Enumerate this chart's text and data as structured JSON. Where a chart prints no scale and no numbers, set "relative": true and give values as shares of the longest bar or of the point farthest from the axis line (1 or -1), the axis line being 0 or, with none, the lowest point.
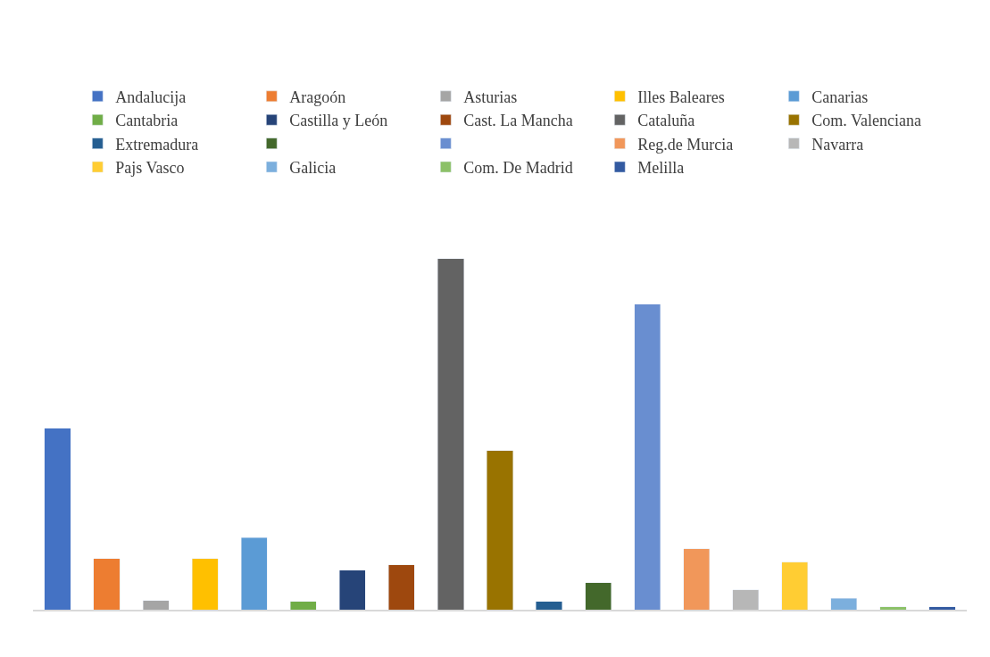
{
  "chart_data": {
    "type": "bar",
    "relative": true,
    "categories": [
      null,
      null,
      null,
      null,
      null,
      null,
      null,
      null,
      null,
      null,
      null,
      null,
      null,
      null,
      null,
      null,
      null,
      null,
      null
    ],
    "legend": "top",
    "stacked": true,
    "series": [
      {
        "name": "Andalucija",
        "color": "#4472c4",
        "values": [
          0.517,
          null,
          null,
          null,
          null,
          null,
          null,
          null,
          null,
          null,
          null,
          null,
          null,
          null,
          null,
          null,
          null,
          null,
          null
        ]
      },
      {
        "name": "Aragoón",
        "color": "#ed7d31",
        "values": [
          null,
          0.146,
          null,
          null,
          null,
          null,
          null,
          null,
          null,
          null,
          null,
          null,
          null,
          null,
          null,
          null,
          null,
          null,
          null
        ]
      },
      {
        "name": "Asturias",
        "color": "#a5a5a5",
        "values": [
          null,
          null,
          0.026,
          null,
          null,
          null,
          null,
          null,
          null,
          null,
          null,
          null,
          null,
          null,
          null,
          null,
          null,
          null,
          null
        ]
      },
      {
        "name": "Illes Baleares",
        "color": "#ffc000",
        "values": [
          null,
          null,
          null,
          0.146,
          null,
          null,
          null,
          null,
          null,
          null,
          null,
          null,
          null,
          null,
          null,
          null,
          null,
          null,
          null
        ]
      },
      {
        "name": "Canarias",
        "color": "#5b9bd5",
        "values": [
          null,
          null,
          null,
          null,
          0.205,
          null,
          null,
          null,
          null,
          null,
          null,
          null,
          null,
          null,
          null,
          null,
          null,
          null,
          null
        ]
      },
      {
        "name": "Cantabria",
        "color": "#70ad47",
        "values": [
          null,
          null,
          null,
          null,
          null,
          0.023,
          null,
          null,
          null,
          null,
          null,
          null,
          null,
          null,
          null,
          null,
          null,
          null,
          null
        ]
      },
      {
        "name": "Castilla y León",
        "color": "#264478",
        "values": [
          null,
          null,
          null,
          null,
          null,
          null,
          0.113,
          null,
          null,
          null,
          null,
          null,
          null,
          null,
          null,
          null,
          null,
          null,
          null
        ]
      },
      {
        "name": "Cast. La Mancha",
        "color": "#9e480e",
        "values": [
          null,
          null,
          null,
          null,
          null,
          null,
          null,
          0.128,
          null,
          null,
          null,
          null,
          null,
          null,
          null,
          null,
          null,
          null,
          null
        ]
      },
      {
        "name": "Cataluña",
        "color": "#636363",
        "values": [
          null,
          null,
          null,
          null,
          null,
          null,
          null,
          null,
          1,
          null,
          null,
          null,
          null,
          null,
          null,
          null,
          null,
          null,
          null
        ]
      },
      {
        "name": "Com. Valenciana",
        "color": "#997300",
        "values": [
          null,
          null,
          null,
          null,
          null,
          null,
          null,
          null,
          null,
          0.453,
          null,
          null,
          null,
          null,
          null,
          null,
          null,
          null,
          null
        ]
      },
      {
        "name": "Extremadura",
        "color": "#255e91",
        "values": [
          null,
          null,
          null,
          null,
          null,
          null,
          null,
          null,
          null,
          null,
          0.023,
          null,
          null,
          null,
          null,
          null,
          null,
          null,
          null
        ]
      },
      {
        "color": "#43682b",
        "values": [
          null,
          null,
          null,
          null,
          null,
          null,
          null,
          null,
          null,
          null,
          null,
          0.077,
          null,
          null,
          null,
          null,
          null,
          null,
          null
        ]
      },
      {
        "color": "#698ed0",
        "values": [
          null,
          null,
          null,
          null,
          null,
          null,
          null,
          null,
          null,
          null,
          null,
          null,
          0.87,
          null,
          null,
          null,
          null,
          null,
          null
        ]
      },
      {
        "name": "Reg.de Murcia",
        "color": "#f1975a",
        "values": [
          null,
          null,
          null,
          null,
          null,
          null,
          null,
          null,
          null,
          null,
          null,
          null,
          null,
          0.174,
          null,
          null,
          null,
          null,
          null
        ]
      },
      {
        "name": "Navarra",
        "color": "#b7b7b7",
        "values": [
          null,
          null,
          null,
          null,
          null,
          null,
          null,
          null,
          null,
          null,
          null,
          null,
          null,
          null,
          0.056,
          null,
          null,
          null,
          null
        ]
      },
      {
        "name": "Pajs Vasco",
        "color": "#ffcd33",
        "values": [
          null,
          null,
          null,
          null,
          null,
          null,
          null,
          null,
          null,
          null,
          null,
          null,
          null,
          null,
          null,
          0.136,
          null,
          null,
          null
        ]
      },
      {
        "name": "Galicia",
        "color": "#7cafdd",
        "values": [
          null,
          null,
          null,
          null,
          null,
          null,
          null,
          null,
          null,
          null,
          null,
          null,
          null,
          null,
          null,
          null,
          0.033,
          null,
          null
        ]
      },
      {
        "name": "Com. De Madrid",
        "color": "#8cc168",
        "values": [
          null,
          null,
          null,
          null,
          null,
          null,
          null,
          null,
          null,
          null,
          null,
          null,
          null,
          null,
          null,
          null,
          null,
          0.008,
          null
        ]
      },
      {
        "name": "Melilla",
        "color": "#335aa1",
        "values": [
          null,
          null,
          null,
          null,
          null,
          null,
          null,
          null,
          null,
          null,
          null,
          null,
          null,
          null,
          null,
          null,
          null,
          null,
          0.008
        ]
      }
    ]
  }
}
